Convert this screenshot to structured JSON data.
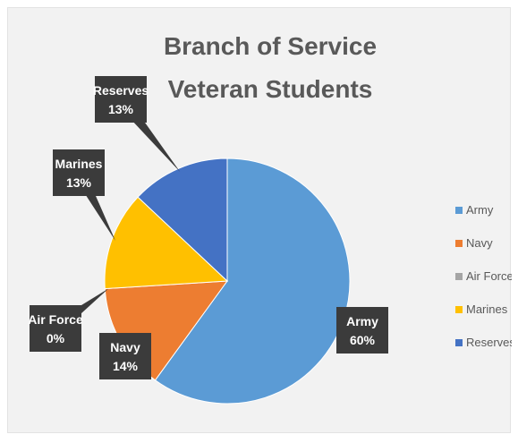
{
  "chart_data": {
    "type": "pie",
    "title_lines": [
      "Branch of Service",
      "Veteran Students"
    ],
    "slices": [
      {
        "label": "Army",
        "value": 60,
        "color": "#5b9bd5"
      },
      {
        "label": "Navy",
        "value": 14,
        "color": "#ed7d31"
      },
      {
        "label": "Air Force",
        "value": 0,
        "color": "#a5a5a5"
      },
      {
        "label": "Marines",
        "value": 13,
        "color": "#ffc000"
      },
      {
        "label": "Reserves",
        "value": 13,
        "color": "#4472c4"
      }
    ],
    "data_labels": [
      {
        "name": "Army",
        "pct": "60%"
      },
      {
        "name": "Navy",
        "pct": "14%"
      },
      {
        "name": "Air Force",
        "pct": "0%"
      },
      {
        "name": "Marines",
        "pct": "13%"
      },
      {
        "name": "Reserves",
        "pct": "13%"
      }
    ],
    "legend": {
      "position": "right",
      "entries": [
        "Army",
        "Navy",
        "Air Force",
        "Marines",
        "Reserves"
      ]
    }
  }
}
